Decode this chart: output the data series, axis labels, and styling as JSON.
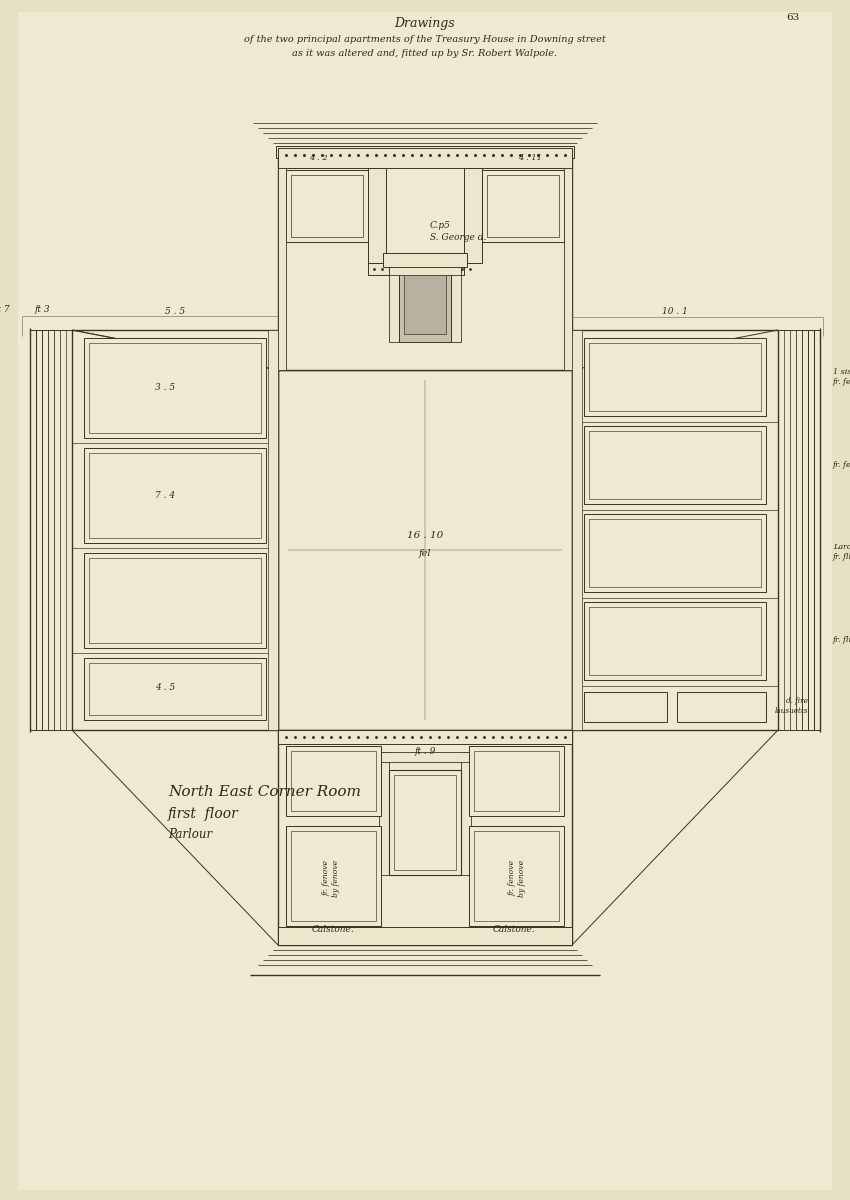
{
  "bg_color": "#e8e0c5",
  "paper_color": "#f0e8d0",
  "ink_color": "#302818",
  "line_color": "#3a3225",
  "dim_line": "#6a6050",
  "panel_fill": "#f5eedd",
  "wall_fill": "#ede5cc",
  "title1": "Drawings",
  "title2": "of the two principal apartments of the Treasury House in Downing street",
  "title3": "as it was altered and, fitted up by Sr. Robert Walpole.",
  "label_room": "North East Corner Room",
  "label_floor": "first  floor",
  "label_parlour": "Parlour",
  "center_label1": "16 . 10",
  "center_label2": "fel",
  "page_number": "63"
}
